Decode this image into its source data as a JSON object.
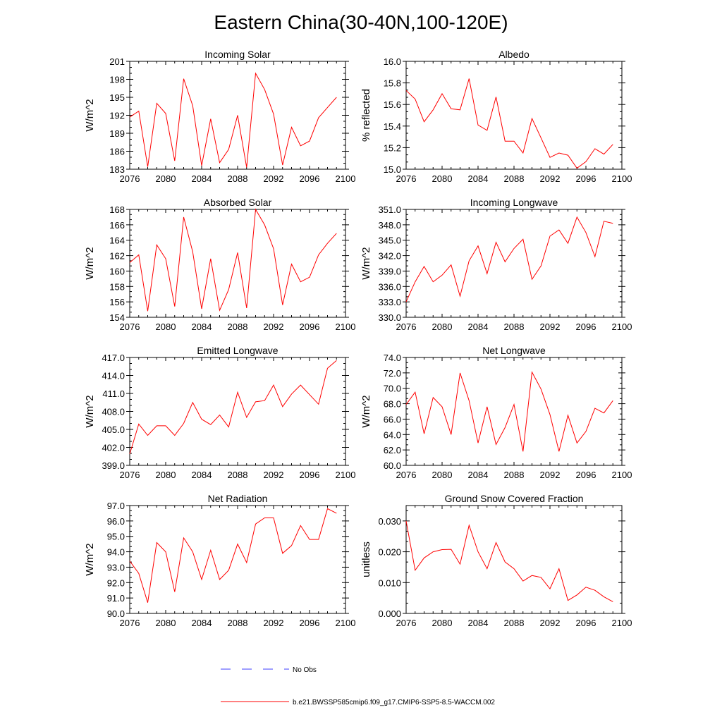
{
  "figure": {
    "title": "Eastern China(30-40N,100-120E)"
  },
  "legend": {
    "obs_label": "No Obs",
    "model_label": "b.e21.BWSSP585cmip6.f09_g17.CMIP6-SSP5-8.5-WACCM.002",
    "obs_color": "#3c3cff",
    "model_color": "#ff0000"
  },
  "chart_data": [
    {
      "type": "line",
      "title": "Incoming Solar",
      "xlabel": "",
      "ylabel": "W/m^2",
      "xlim": [
        2076,
        2100
      ],
      "ylim": [
        183,
        201
      ],
      "xticks": [
        2076,
        2080,
        2084,
        2088,
        2092,
        2096,
        2100
      ],
      "yticks": [
        "183",
        "186",
        "189",
        "192",
        "195",
        "198",
        "201"
      ],
      "x": [
        2076,
        2077,
        2078,
        2079,
        2080,
        2081,
        2082,
        2083,
        2084,
        2085,
        2086,
        2087,
        2088,
        2089,
        2090,
        2091,
        2092,
        2093,
        2094,
        2095,
        2096,
        2097,
        2098,
        2099
      ],
      "series": [
        {
          "name": "b.e21.BWSSP585cmip6.f09_g17.CMIP6-SSP5-8.5-WACCM.002",
          "values": [
            191.7,
            192.7,
            183.4,
            194.0,
            192.3,
            184.4,
            198.1,
            193.6,
            183.6,
            191.4,
            184.1,
            186.3,
            192.0,
            183.3,
            199.0,
            196.3,
            192.2,
            183.7,
            190.0,
            186.9,
            187.7,
            191.6,
            193.3,
            195.0
          ]
        }
      ]
    },
    {
      "type": "line",
      "title": "Albedo",
      "xlabel": "",
      "ylabel": "% reflected",
      "xlim": [
        2076,
        2100
      ],
      "ylim": [
        15.0,
        16.0
      ],
      "xticks": [
        2076,
        2080,
        2084,
        2088,
        2092,
        2096,
        2100
      ],
      "yticks": [
        "15.0",
        "15.2",
        "15.4",
        "15.6",
        "15.8",
        "16.0"
      ],
      "x": [
        2076,
        2077,
        2078,
        2079,
        2080,
        2081,
        2082,
        2083,
        2084,
        2085,
        2086,
        2087,
        2088,
        2089,
        2090,
        2091,
        2092,
        2093,
        2094,
        2095,
        2096,
        2097,
        2098,
        2099
      ],
      "series": [
        {
          "name": "b.e21.BWSSP585cmip6.f09_g17.CMIP6-SSP5-8.5-WACCM.002",
          "values": [
            15.73,
            15.65,
            15.44,
            15.55,
            15.7,
            15.56,
            15.55,
            15.84,
            15.41,
            15.36,
            15.67,
            15.26,
            15.26,
            15.15,
            15.47,
            15.29,
            15.11,
            15.15,
            15.13,
            15.01,
            15.07,
            15.19,
            15.14,
            15.23
          ]
        }
      ]
    },
    {
      "type": "line",
      "title": "Absorbed Solar",
      "xlabel": "",
      "ylabel": "W/m^2",
      "xlim": [
        2076,
        2100
      ],
      "ylim": [
        154,
        168
      ],
      "xticks": [
        2076,
        2080,
        2084,
        2088,
        2092,
        2096,
        2100
      ],
      "yticks": [
        "154",
        "156",
        "158",
        "160",
        "162",
        "164",
        "166",
        "168"
      ],
      "x": [
        2076,
        2077,
        2078,
        2079,
        2080,
        2081,
        2082,
        2083,
        2084,
        2085,
        2086,
        2087,
        2088,
        2089,
        2090,
        2091,
        2092,
        2093,
        2094,
        2095,
        2096,
        2097,
        2098,
        2099
      ],
      "series": [
        {
          "name": "b.e21.BWSSP585cmip6.f09_g17.CMIP6-SSP5-8.5-WACCM.002",
          "values": [
            161.1,
            162.1,
            154.8,
            163.4,
            161.6,
            155.4,
            167.0,
            162.5,
            155.1,
            161.6,
            154.9,
            157.6,
            162.4,
            155.2,
            168.0,
            166.0,
            162.9,
            155.6,
            160.9,
            158.6,
            159.2,
            162.1,
            163.6,
            164.9
          ]
        }
      ]
    },
    {
      "type": "line",
      "title": "Incoming Longwave",
      "xlabel": "",
      "ylabel": "W/m^2",
      "xlim": [
        2076,
        2100
      ],
      "ylim": [
        330.0,
        351.0
      ],
      "xticks": [
        2076,
        2080,
        2084,
        2088,
        2092,
        2096,
        2100
      ],
      "yticks": [
        "330.0",
        "333.0",
        "336.0",
        "339.0",
        "342.0",
        "345.0",
        "348.0",
        "351.0"
      ],
      "x": [
        2076,
        2077,
        2078,
        2079,
        2080,
        2081,
        2082,
        2083,
        2084,
        2085,
        2086,
        2087,
        2088,
        2089,
        2090,
        2091,
        2092,
        2093,
        2094,
        2095,
        2096,
        2097,
        2098,
        2099
      ],
      "series": [
        {
          "name": "b.e21.BWSSP585cmip6.f09_g17.CMIP6-SSP5-8.5-WACCM.002",
          "values": [
            333.0,
            336.9,
            339.9,
            336.9,
            338.2,
            340.2,
            334.1,
            341.0,
            343.9,
            338.5,
            344.6,
            340.8,
            343.4,
            345.2,
            337.4,
            340.0,
            345.8,
            347.0,
            344.4,
            349.5,
            346.5,
            341.8,
            348.7,
            348.3
          ]
        }
      ]
    },
    {
      "type": "line",
      "title": "Emitted Longwave",
      "xlabel": "",
      "ylabel": "W/m^2",
      "xlim": [
        2076,
        2100
      ],
      "ylim": [
        399.0,
        417.0
      ],
      "xticks": [
        2076,
        2080,
        2084,
        2088,
        2092,
        2096,
        2100
      ],
      "yticks": [
        "399.0",
        "402.0",
        "405.0",
        "408.0",
        "411.0",
        "414.0",
        "417.0"
      ],
      "x": [
        2076,
        2077,
        2078,
        2079,
        2080,
        2081,
        2082,
        2083,
        2084,
        2085,
        2086,
        2087,
        2088,
        2089,
        2090,
        2091,
        2092,
        2093,
        2094,
        2095,
        2096,
        2097,
        2098,
        2099
      ],
      "series": [
        {
          "name": "b.e21.BWSSP585cmip6.f09_g17.CMIP6-SSP5-8.5-WACCM.002",
          "values": [
            400.9,
            405.9,
            404.0,
            405.6,
            405.6,
            404.0,
            406.0,
            409.5,
            406.7,
            405.8,
            407.4,
            405.4,
            411.2,
            407.0,
            409.6,
            409.8,
            412.4,
            408.8,
            410.9,
            412.4,
            410.8,
            409.2,
            415.2,
            416.5
          ]
        }
      ]
    },
    {
      "type": "line",
      "title": "Net Longwave",
      "xlabel": "",
      "ylabel": "W/m^2",
      "xlim": [
        2076,
        2100
      ],
      "ylim": [
        60.0,
        74.0
      ],
      "xticks": [
        2076,
        2080,
        2084,
        2088,
        2092,
        2096,
        2100
      ],
      "yticks": [
        "60.0",
        "62.0",
        "64.0",
        "66.0",
        "68.0",
        "70.0",
        "72.0",
        "74.0"
      ],
      "x": [
        2076,
        2077,
        2078,
        2079,
        2080,
        2081,
        2082,
        2083,
        2084,
        2085,
        2086,
        2087,
        2088,
        2089,
        2090,
        2091,
        2092,
        2093,
        2094,
        2095,
        2096,
        2097,
        2098,
        2099
      ],
      "series": [
        {
          "name": "b.e21.BWSSP585cmip6.f09_g17.CMIP6-SSP5-8.5-WACCM.002",
          "values": [
            67.9,
            69.5,
            64.1,
            68.8,
            67.6,
            64.0,
            72.0,
            68.4,
            62.9,
            67.6,
            62.7,
            64.9,
            67.9,
            61.8,
            72.1,
            69.9,
            66.6,
            61.8,
            66.5,
            62.9,
            64.4,
            67.4,
            66.8,
            68.4
          ]
        }
      ]
    },
    {
      "type": "line",
      "title": "Net Radiation",
      "xlabel": "",
      "ylabel": "W/m^2",
      "xlim": [
        2076,
        2100
      ],
      "ylim": [
        90.0,
        97.0
      ],
      "xticks": [
        2076,
        2080,
        2084,
        2088,
        2092,
        2096,
        2100
      ],
      "yticks": [
        "90.0",
        "91.0",
        "92.0",
        "93.0",
        "94.0",
        "95.0",
        "96.0",
        "97.0"
      ],
      "x": [
        2076,
        2077,
        2078,
        2079,
        2080,
        2081,
        2082,
        2083,
        2084,
        2085,
        2086,
        2087,
        2088,
        2089,
        2090,
        2091,
        2092,
        2093,
        2094,
        2095,
        2096,
        2097,
        2098,
        2099
      ],
      "series": [
        {
          "name": "b.e21.BWSSP585cmip6.f09_g17.CMIP6-SSP5-8.5-WACCM.002",
          "values": [
            93.4,
            92.6,
            90.7,
            94.6,
            94.0,
            91.4,
            94.9,
            94.0,
            92.2,
            94.1,
            92.2,
            92.8,
            94.5,
            93.3,
            95.8,
            96.2,
            96.2,
            93.9,
            94.4,
            95.7,
            94.8,
            94.8,
            96.8,
            96.5
          ]
        }
      ]
    },
    {
      "type": "line",
      "title": "Ground Snow Covered Fraction",
      "xlabel": "",
      "ylabel": "unitless",
      "xlim": [
        2076,
        2100
      ],
      "ylim": [
        0.0,
        0.035
      ],
      "xticks": [
        2076,
        2080,
        2084,
        2088,
        2092,
        2096,
        2100
      ],
      "yticks": [
        "0.000",
        "0.010",
        "0.020",
        "0.030"
      ],
      "x": [
        2076,
        2077,
        2078,
        2079,
        2080,
        2081,
        2082,
        2083,
        2084,
        2085,
        2086,
        2087,
        2088,
        2089,
        2090,
        2091,
        2092,
        2093,
        2094,
        2095,
        2096,
        2097,
        2098,
        2099
      ],
      "series": [
        {
          "name": "b.e21.BWSSP585cmip6.f09_g17.CMIP6-SSP5-8.5-WACCM.002",
          "values": [
            0.03,
            0.014,
            0.018,
            0.02,
            0.0207,
            0.0208,
            0.016,
            0.0286,
            0.02,
            0.0145,
            0.023,
            0.0167,
            0.0145,
            0.0105,
            0.0123,
            0.0117,
            0.008,
            0.0145,
            0.0042,
            0.006,
            0.0085,
            0.0075,
            0.0054,
            0.0038
          ]
        }
      ]
    }
  ]
}
